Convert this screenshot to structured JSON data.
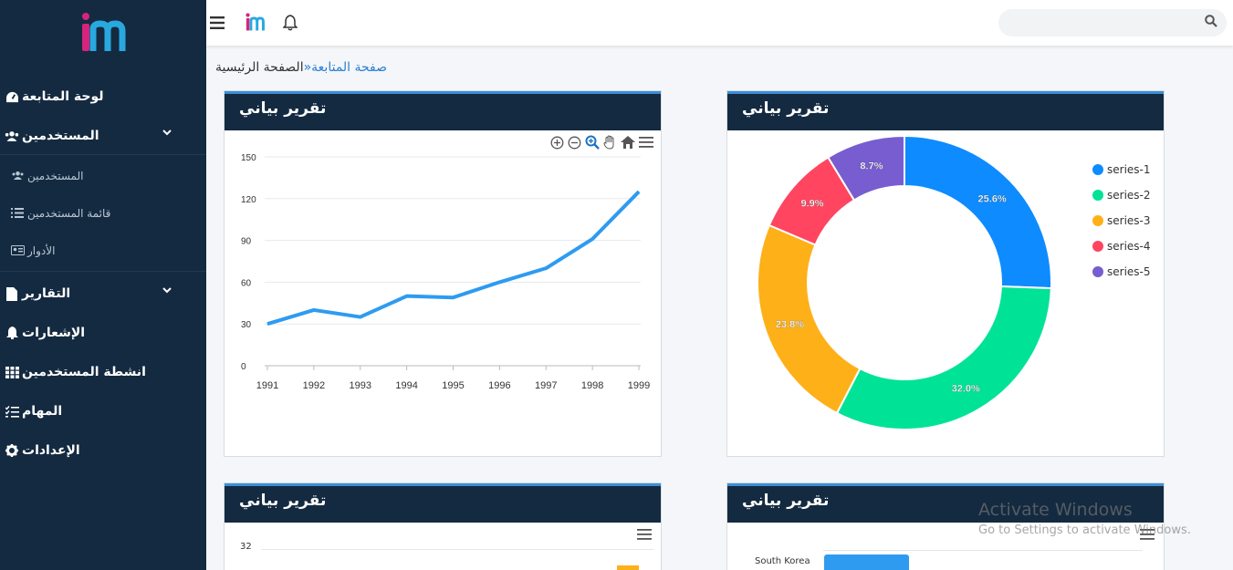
{
  "sidebar": {
    "logo": "im",
    "items": [
      {
        "label": "لوحة المتابعة",
        "icon": "gauge-icon"
      },
      {
        "label": "المستخدمين",
        "icon": "users-icon"
      },
      {
        "label": "المستخدمين",
        "icon": "users-icon"
      },
      {
        "label": "قائمة المستخدمين",
        "icon": "list-icon"
      },
      {
        "label": "الأدوار",
        "icon": "id-card-icon"
      },
      {
        "label": "التقارير",
        "icon": "file-icon"
      },
      {
        "label": "الإشعارات",
        "icon": "bell-icon"
      },
      {
        "label": "انشطة المستخدمين",
        "icon": "grid-icon"
      },
      {
        "label": "المهام",
        "icon": "tasks-icon"
      },
      {
        "label": "الإعدادات",
        "icon": "gear-icon"
      }
    ]
  },
  "topbar": {
    "search_placeholder": ""
  },
  "breadcrumb": {
    "home": "الصفحة الرئيسية",
    "separator": "«",
    "current": "صفحة المتابعة"
  },
  "cards": [
    {
      "title": "تقرير بياني"
    },
    {
      "title": "تقرير بياني"
    },
    {
      "title": "تقرير بياني"
    },
    {
      "title": "تقرير بياني"
    }
  ],
  "colors": {
    "sidebar": "#142a40",
    "accent": "#3a8fd6",
    "line": "#2e9bf0"
  },
  "chart_data": [
    {
      "type": "line",
      "title": "",
      "x": [
        "1991",
        "1992",
        "1993",
        "1994",
        "1995",
        "1996",
        "1997",
        "1998",
        "1999"
      ],
      "series": [
        {
          "values": [
            30,
            40,
            35,
            50,
            49,
            60,
            70,
            91,
            125
          ]
        }
      ],
      "yticks": [
        "0",
        "30",
        "60",
        "90",
        "120",
        "150"
      ],
      "ylim": [
        0,
        150
      ],
      "grid": true
    },
    {
      "type": "pie",
      "title": "",
      "legend_position": "right",
      "series": [
        {
          "name": "series-1",
          "value": 25.6,
          "label": "25.6%",
          "color": "#0d8bff"
        },
        {
          "name": "series-2",
          "value": 32.0,
          "label": "32.0%",
          "color": "#00e396"
        },
        {
          "name": "series-3",
          "value": 23.8,
          "label": "23.8%",
          "color": "#feb019"
        },
        {
          "name": "series-4",
          "value": 9.9,
          "label": "9.9%",
          "color": "#ff4560"
        },
        {
          "name": "series-5",
          "value": 8.7,
          "label": "8.7%",
          "color": "#775dd0"
        }
      ]
    },
    {
      "type": "bar",
      "title": "",
      "yticks": [
        "32"
      ]
    },
    {
      "type": "bar",
      "title": "",
      "categories": [
        "South Korea"
      ]
    }
  ],
  "watermark": {
    "title": "Activate Windows",
    "subtitle": "Go to Settings to activate Windows."
  }
}
